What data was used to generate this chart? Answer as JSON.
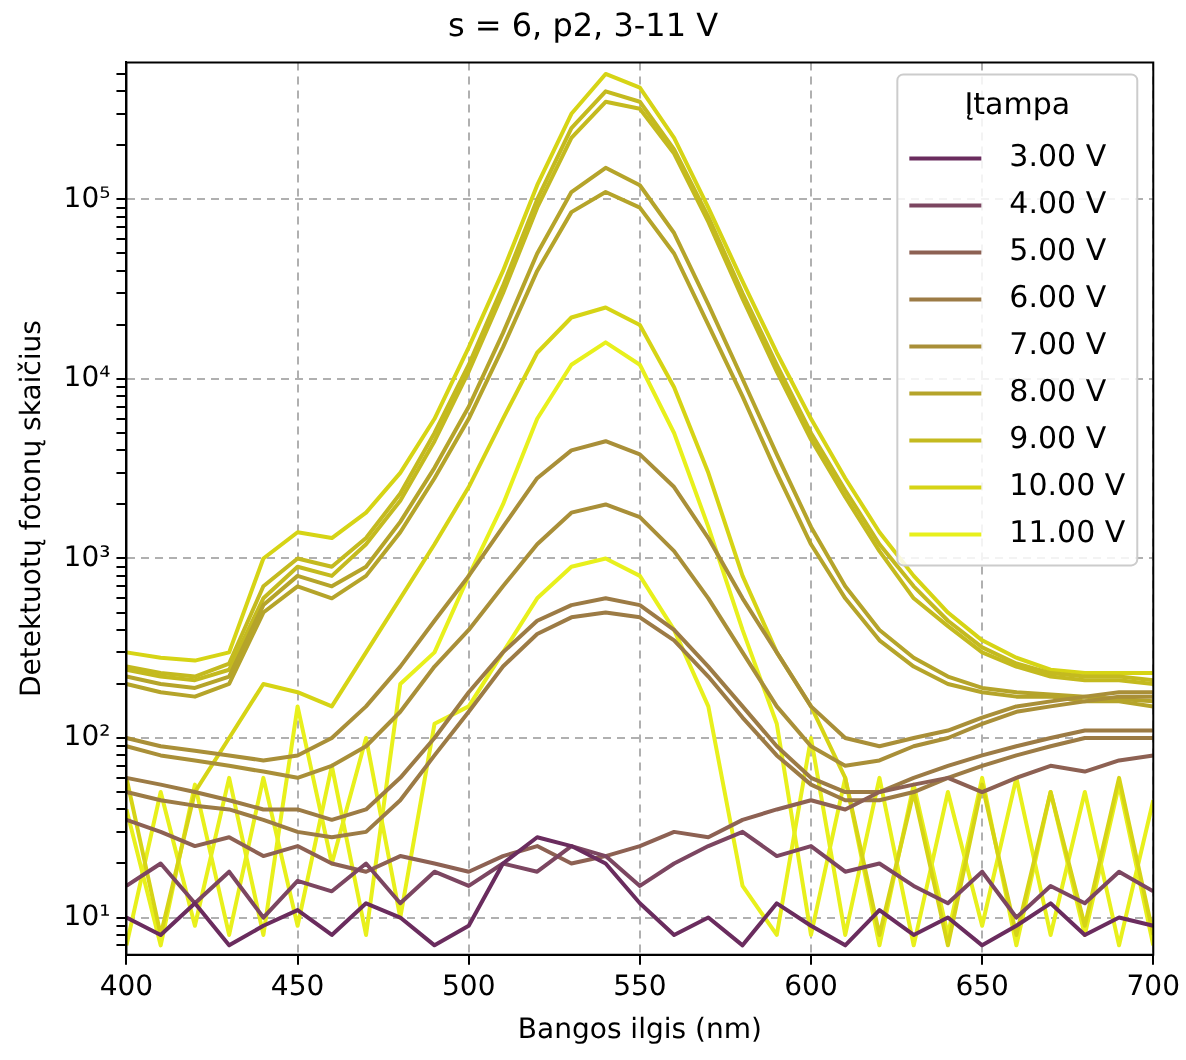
{
  "chart_data": {
    "type": "line",
    "title": "s = 6, p2, 3-11 V",
    "xlabel": "Bangos ilgis (nm)",
    "ylabel": "Detektuotų fotonų skaičius",
    "legend_title": "Įtampa",
    "legend": "top right",
    "grid": true,
    "log": "y",
    "xlim": [
      400,
      700
    ],
    "xticks": [
      400,
      450,
      500,
      550,
      600,
      650,
      700
    ],
    "ylim": [
      6.2,
      580000
    ],
    "yticks": [
      {
        "value": 7,
        "label": null
      },
      {
        "value": 8,
        "label": null
      },
      {
        "value": 9,
        "label": null
      },
      {
        "value": 10,
        "label": "10¹"
      },
      {
        "value": 20,
        "label": null
      },
      {
        "value": 30,
        "label": null
      },
      {
        "value": 40,
        "label": null
      },
      {
        "value": 50,
        "label": null
      },
      {
        "value": 60,
        "label": null
      },
      {
        "value": 70,
        "label": null
      },
      {
        "value": 80,
        "label": null
      },
      {
        "value": 90,
        "label": null
      },
      {
        "value": 100,
        "label": "10²"
      },
      {
        "value": 200,
        "label": null
      },
      {
        "value": 300,
        "label": null
      },
      {
        "value": 400,
        "label": null
      },
      {
        "value": 500,
        "label": null
      },
      {
        "value": 600,
        "label": null
      },
      {
        "value": 700,
        "label": null
      },
      {
        "value": 800,
        "label": null
      },
      {
        "value": 900,
        "label": null
      },
      {
        "value": 1000,
        "label": "10³"
      },
      {
        "value": 2000,
        "label": null
      },
      {
        "value": 3000,
        "label": null
      },
      {
        "value": 4000,
        "label": null
      },
      {
        "value": 5000,
        "label": null
      },
      {
        "value": 6000,
        "label": null
      },
      {
        "value": 7000,
        "label": null
      },
      {
        "value": 8000,
        "label": null
      },
      {
        "value": 9000,
        "label": null
      },
      {
        "value": 10000,
        "label": "10⁴"
      },
      {
        "value": 20000,
        "label": null
      },
      {
        "value": 30000,
        "label": null
      },
      {
        "value": 40000,
        "label": null
      },
      {
        "value": 50000,
        "label": null
      },
      {
        "value": 60000,
        "label": null
      },
      {
        "value": 70000,
        "label": null
      },
      {
        "value": 80000,
        "label": null
      },
      {
        "value": 90000,
        "label": null
      },
      {
        "value": 100000,
        "label": "10⁵"
      },
      {
        "value": 200000,
        "label": null
      },
      {
        "value": 300000,
        "label": null
      },
      {
        "value": 400000,
        "label": null
      },
      {
        "value": 500000,
        "label": null
      }
    ],
    "x": [
      400,
      410,
      420,
      430,
      440,
      450,
      460,
      470,
      480,
      490,
      500,
      510,
      520,
      530,
      540,
      550,
      560,
      570,
      580,
      590,
      600,
      610,
      620,
      630,
      640,
      650,
      660,
      670,
      680,
      690,
      700
    ],
    "series": [
      {
        "name": "3.00 V",
        "color": "#6a2c5e",
        "values": [
          10,
          8,
          12,
          7,
          9,
          11,
          8,
          12,
          10,
          7,
          9,
          20,
          28,
          25,
          20,
          12,
          8,
          10,
          7,
          12,
          9,
          7,
          11,
          8,
          10,
          7,
          9,
          12,
          8,
          10,
          9
        ]
      },
      {
        "name": "4.00 V",
        "color": "#7c4661",
        "values": [
          15,
          20,
          12,
          18,
          10,
          16,
          14,
          20,
          12,
          18,
          15,
          20,
          18,
          25,
          22,
          15,
          20,
          25,
          30,
          22,
          25,
          18,
          20,
          15,
          12,
          18,
          10,
          15,
          12,
          18,
          14
        ]
      },
      {
        "name": "5.00 V",
        "color": "#8d6153",
        "values": [
          35,
          30,
          25,
          28,
          22,
          25,
          20,
          18,
          22,
          20,
          18,
          22,
          25,
          20,
          22,
          25,
          30,
          28,
          35,
          40,
          45,
          40,
          50,
          55,
          60,
          50,
          60,
          70,
          65,
          75,
          80
        ]
      },
      {
        "name": "6.00 V",
        "color": "#9c7b45",
        "values": [
          60,
          55,
          50,
          45,
          40,
          40,
          35,
          40,
          60,
          100,
          180,
          300,
          450,
          550,
          600,
          550,
          400,
          250,
          150,
          90,
          60,
          50,
          50,
          60,
          70,
          80,
          90,
          100,
          110,
          110,
          110
        ]
      },
      {
        "color": "#9c7b45",
        "values": [
          50,
          45,
          42,
          40,
          35,
          30,
          28,
          30,
          45,
          80,
          140,
          250,
          380,
          470,
          500,
          470,
          350,
          220,
          130,
          80,
          55,
          45,
          45,
          50,
          60,
          70,
          80,
          90,
          100,
          100,
          100
        ]
      },
      {
        "name": "7.00 V",
        "color": "#a98f38",
        "values": [
          100,
          90,
          85,
          80,
          75,
          80,
          100,
          150,
          250,
          450,
          800,
          1500,
          2800,
          4000,
          4500,
          3800,
          2500,
          1300,
          600,
          300,
          150,
          100,
          90,
          100,
          110,
          130,
          150,
          160,
          170,
          180,
          180
        ]
      },
      {
        "color": "#a98f38",
        "values": [
          90,
          80,
          75,
          70,
          65,
          60,
          70,
          90,
          140,
          250,
          400,
          700,
          1200,
          1800,
          2000,
          1700,
          1100,
          600,
          300,
          150,
          90,
          70,
          75,
          90,
          100,
          120,
          140,
          150,
          160,
          170,
          170
        ]
      },
      {
        "name": "8.00 V",
        "color": "#b5a42a",
        "values": [
          200,
          180,
          170,
          200,
          500,
          700,
          600,
          800,
          1400,
          2800,
          6000,
          15000,
          40000,
          85000,
          110000,
          90000,
          50000,
          20000,
          8000,
          3000,
          1200,
          600,
          350,
          250,
          200,
          180,
          170,
          170,
          160,
          160,
          150
        ]
      },
      {
        "color": "#b5a42a",
        "values": [
          220,
          200,
          190,
          220,
          550,
          800,
          700,
          900,
          1600,
          3200,
          7000,
          18000,
          50000,
          110000,
          150000,
          120000,
          65000,
          26000,
          10000,
          3800,
          1500,
          700,
          400,
          280,
          220,
          190,
          180,
          175,
          170,
          165,
          160
        ]
      },
      {
        "name": "9.00 V",
        "color": "#c4ba1f",
        "values": [
          250,
          230,
          220,
          260,
          700,
          1000,
          900,
          1300,
          2300,
          5000,
          12000,
          33000,
          100000,
          250000,
          400000,
          350000,
          190000,
          80000,
          30000,
          12000,
          5000,
          2400,
          1200,
          700,
          450,
          320,
          260,
          230,
          220,
          220,
          210
        ]
      },
      {
        "color": "#c4ba1f",
        "values": [
          240,
          220,
          210,
          240,
          600,
          900,
          800,
          1200,
          2100,
          4500,
          11000,
          30000,
          90000,
          220000,
          350000,
          320000,
          180000,
          75000,
          28000,
          11000,
          4600,
          2200,
          1100,
          600,
          420,
          300,
          250,
          220,
          210,
          210,
          200
        ]
      },
      {
        "name": "10.00 V",
        "color": "#d6d415",
        "values": [
          300,
          280,
          270,
          300,
          1000,
          1400,
          1300,
          1800,
          3000,
          6000,
          15000,
          40000,
          120000,
          300000,
          500000,
          420000,
          220000,
          90000,
          35000,
          14000,
          6000,
          2800,
          1400,
          800,
          500,
          350,
          280,
          240,
          230,
          230,
          230
        ]
      },
      {
        "color": "#d6d415",
        "values": [
          60,
          8,
          50,
          100,
          200,
          180,
          150,
          300,
          600,
          1200,
          2500,
          6000,
          14000,
          22000,
          25000,
          20000,
          9000,
          3000,
          800,
          300,
          150,
          60,
          8,
          50,
          7,
          55,
          8,
          50,
          9,
          60,
          8
        ]
      },
      {
        "name": "11.00 V",
        "color": "#e8f01c",
        "values": [
          40,
          7,
          55,
          8,
          60,
          9,
          70,
          8,
          200,
          300,
          800,
          2000,
          6000,
          12000,
          16000,
          12000,
          5000,
          1500,
          400,
          120,
          8,
          60,
          7,
          55,
          8,
          60,
          7,
          50,
          8,
          55,
          7
        ]
      },
      {
        "color": "#e8f01c",
        "values": [
          7,
          50,
          9,
          60,
          8,
          150,
          20,
          100,
          10,
          120,
          150,
          300,
          600,
          900,
          1000,
          800,
          400,
          150,
          15,
          8,
          100,
          8,
          60,
          7,
          50,
          9,
          60,
          8,
          50,
          7,
          45
        ]
      }
    ]
  }
}
